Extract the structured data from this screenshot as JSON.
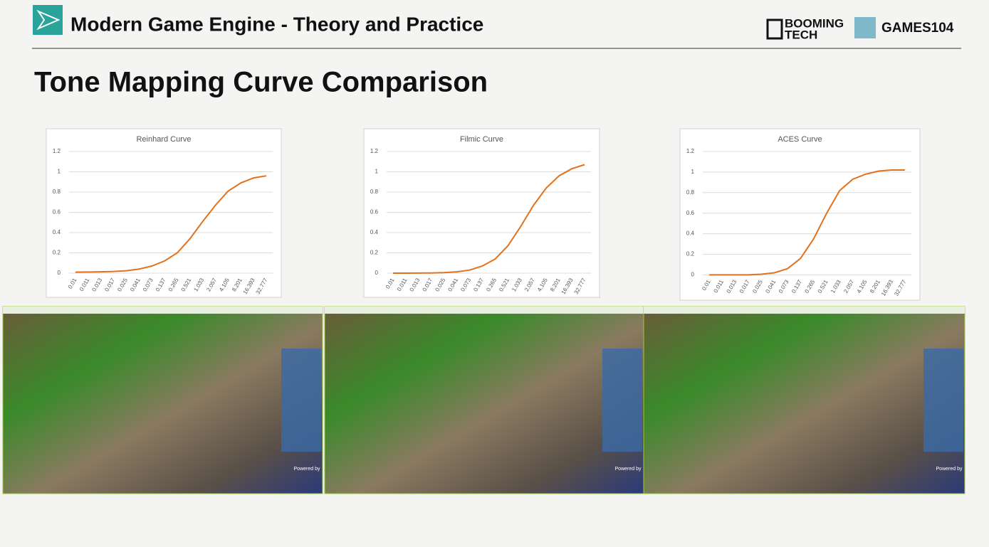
{
  "header": {
    "title": "Modern Game Engine - Theory and Practice",
    "logo_left_top": "BOOMING",
    "logo_left_bottom": "TECH",
    "logo_right": "GAMES104"
  },
  "slide_title": "Tone Mapping Curve Comparison",
  "chart_data": [
    {
      "type": "line",
      "title": "Reinhard Curve",
      "color": "#e2711d",
      "categories": [
        "0.01",
        "0.011",
        "0.013",
        "0.017",
        "0.025",
        "0.041",
        "0.073",
        "0.137",
        "0.265",
        "0.521",
        "1.033",
        "2.057",
        "4.105",
        "8.201",
        "16.393",
        "32.777"
      ],
      "values": [
        0.01,
        0.011,
        0.013,
        0.017,
        0.024,
        0.04,
        0.07,
        0.12,
        0.2,
        0.34,
        0.51,
        0.67,
        0.81,
        0.89,
        0.94,
        0.96
      ],
      "ylim": [
        0,
        1.2
      ],
      "yticks": [
        0,
        0.2,
        0.4,
        0.6,
        0.8,
        1,
        1.2
      ],
      "grid": true
    },
    {
      "type": "line",
      "title": "Filmic Curve",
      "color": "#e2711d",
      "categories": [
        "0.01",
        "0.011",
        "0.013",
        "0.017",
        "0.025",
        "0.041",
        "0.073",
        "0.137",
        "0.265",
        "0.521",
        "1.033",
        "2.057",
        "4.105",
        "8.201",
        "16.393",
        "32.777"
      ],
      "values": [
        0,
        0,
        0.001,
        0.002,
        0.005,
        0.013,
        0.03,
        0.07,
        0.14,
        0.27,
        0.46,
        0.67,
        0.84,
        0.96,
        1.03,
        1.07
      ],
      "ylim": [
        0,
        1.2
      ],
      "yticks": [
        0,
        0.2,
        0.4,
        0.6,
        0.8,
        1,
        1.2
      ],
      "grid": true
    },
    {
      "type": "line",
      "title": "ACES Curve",
      "color": "#e2711d",
      "categories": [
        "0.01",
        "0.011",
        "0.013",
        "0.017",
        "0.025",
        "0.041",
        "0.073",
        "0.137",
        "0.265",
        "0.521",
        "1.033",
        "2.057",
        "4.105",
        "8.201",
        "16.393",
        "32.777"
      ],
      "values": [
        0,
        0,
        0,
        0,
        0.006,
        0.02,
        0.06,
        0.16,
        0.35,
        0.6,
        0.82,
        0.93,
        0.98,
        1.01,
        1.02,
        1.02
      ],
      "ylim": [
        0,
        1.2
      ],
      "yticks": [
        0,
        0.2,
        0.4,
        0.6,
        0.8,
        1,
        1.2
      ],
      "grid": true
    }
  ],
  "screenshots": [
    {
      "powered_by": "Powered by"
    },
    {
      "powered_by": "Powered by"
    },
    {
      "powered_by": "Powered by"
    }
  ]
}
